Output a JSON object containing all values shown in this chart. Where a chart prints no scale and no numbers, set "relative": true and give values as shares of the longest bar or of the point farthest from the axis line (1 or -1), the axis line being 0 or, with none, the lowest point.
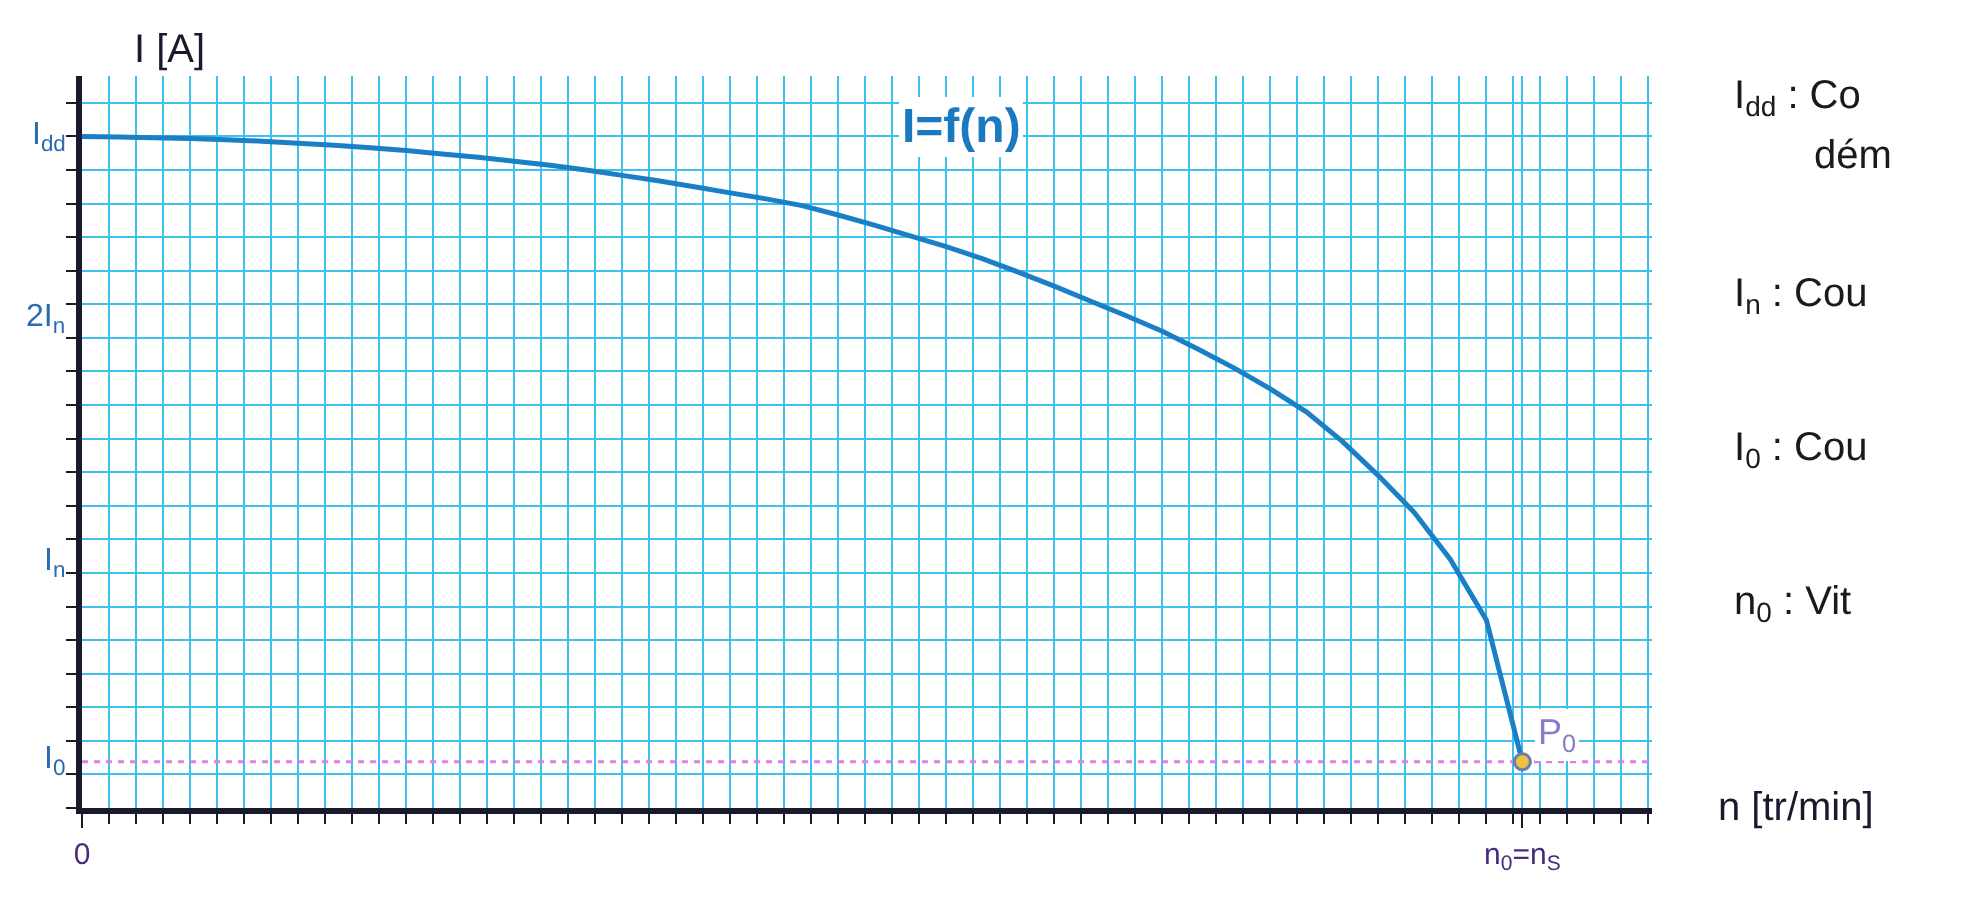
{
  "chart_data": {
    "type": "line",
    "relative": true,
    "title": "I=f(n)",
    "xlabel": "n [tr/min]",
    "ylabel": "I [A]",
    "categories": [
      "0",
      null,
      null,
      null,
      null,
      null,
      null,
      null,
      null,
      null,
      null,
      null,
      null,
      null,
      null,
      null,
      null,
      null,
      null,
      null,
      null,
      null,
      null,
      null,
      null,
      null,
      null,
      null,
      null,
      null,
      null,
      null,
      null,
      null,
      null,
      null,
      null,
      null,
      null,
      null,
      "n$_{0}$=n$_{S}$"
    ],
    "series": [
      {
        "color": "#1a7fc4",
        "marker": "none",
        "line_style": "solid",
        "values": [
          1.0,
          0.999,
          0.998,
          0.997,
          0.995,
          0.993,
          0.99,
          0.987,
          0.983,
          0.979,
          0.974,
          0.969,
          0.963,
          0.957,
          0.95,
          0.942,
          0.934,
          0.925,
          0.916,
          0.907,
          0.897,
          0.883,
          0.868,
          0.852,
          0.836,
          0.818,
          0.798,
          0.777,
          0.755,
          0.733,
          0.71,
          0.683,
          0.655,
          0.624,
          0.59,
          0.546,
          0.495,
          0.44,
          0.37,
          0.28,
          0.069
        ]
      }
    ],
    "grid": true,
    "ref_lines": [
      {
        "axis": "y",
        "value": 0.069,
        "color": "#e080e0",
        "line_style": "dotted"
      }
    ],
    "annotations": [
      {
        "text": "P$_{0}$",
        "x": "n$_{0}$=n$_{S}$",
        "y": 0.069
      },
      "I$_{dd}$",
      "2I$_{n}$",
      "I$_{n}$",
      "I$_{0}$",
      "I$_{dd}$ : Co",
      "dém",
      "I$_{n}$ : Cou",
      "I$_{0}$ : Cou",
      "n$_{0}$ : Vit"
    ]
  }
}
